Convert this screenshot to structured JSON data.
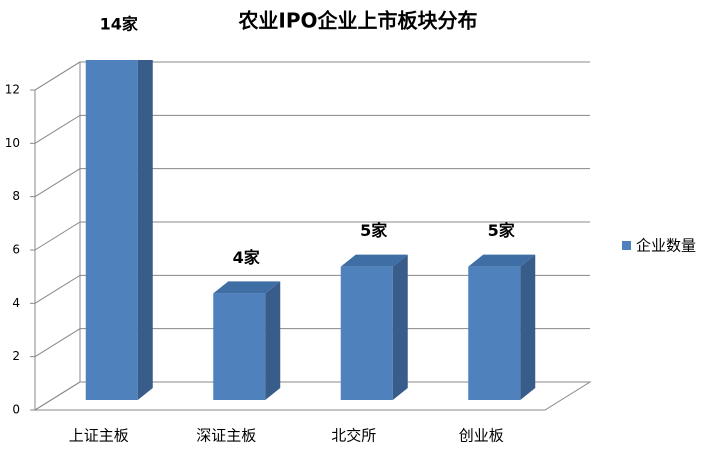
{
  "chart_data": {
    "type": "bar3d",
    "title": "农业IPO企业上市板块分布",
    "categories": [
      "上证主板",
      "深证主板",
      "北交所",
      "创业板"
    ],
    "series": [
      {
        "name": "企业数量",
        "color": "#4f81bd",
        "values": [
          14,
          4,
          5,
          5
        ],
        "value_labels": [
          "14家",
          "4家",
          "5家",
          "5家"
        ]
      }
    ],
    "ylim": [
      0,
      12
    ],
    "yticks": [
      0,
      2,
      4,
      6,
      8,
      10,
      12
    ],
    "grid": true,
    "legend": "right"
  }
}
